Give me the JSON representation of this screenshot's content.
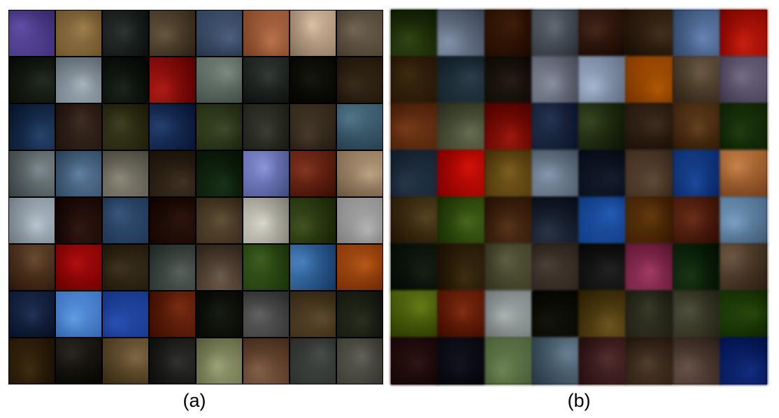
{
  "panels": [
    {
      "id": "a",
      "caption": "(a)",
      "tiles": [
        "#8f7fbf",
        "#b8a37c",
        "#58605c",
        "#8c7f6a",
        "#7c8da3",
        "#c99a7a",
        "#d9c9b8",
        "#9c9283",
        "#4a5446",
        "#b8c0c6",
        "#3f4a3e",
        "#b83b34",
        "#9ea9a2",
        "#5d6460",
        "#3a3d2e",
        "#6b5c44",
        "#4b6a8a",
        "#6e5b50",
        "#6d6d4a",
        "#4a6890",
        "#6f7a55",
        "#6b6c60",
        "#7a6d5c",
        "#7e9aa8",
        "#9ba4a6",
        "#8aa2b8",
        "#a8a69c",
        "#6b5c4a",
        "#3f5d3c",
        "#a7aed8",
        "#a05f45",
        "#c7b7a2",
        "#c4ccd2",
        "#5e3d34",
        "#6a86a3",
        "#5b3a2a",
        "#8c7e66",
        "#d7d6cf",
        "#6a7b45",
        "#c8c8c8",
        "#8c7258",
        "#c22c2c",
        "#6f6449",
        "#7e8782",
        "#8e8072",
        "#6b8a4a",
        "#6d9bc2",
        "#c6843e",
        "#4a5f80",
        "#8cb8e8",
        "#5b84c9",
        "#9a5730",
        "#3e4636",
        "#8a8a8a",
        "#8a7a5d",
        "#585d4a",
        "#6d5a36",
        "#4f4a42",
        "#9c8b6b",
        "#5a5a58",
        "#b4b89a",
        "#a08670",
        "#7a7e7a",
        "#8c8c84"
      ]
    },
    {
      "id": "b",
      "caption": "(b)",
      "tiles": [
        "#5b6e3c",
        "#9ea6b3",
        "#6b4a2e",
        "#8a8f96",
        "#6b4f3f",
        "#6c5a44",
        "#8fa3bd",
        "#c44b3a",
        "#6d5a3a",
        "#5c6e78",
        "#4f463c",
        "#a7aab3",
        "#b9c2cf",
        "#c08a3a",
        "#8d8070",
        "#9a94a6",
        "#9a6e4c",
        "#8a8f7a",
        "#a53d2e",
        "#52607a",
        "#5c6a48",
        "#6a5a4a",
        "#8a6f4f",
        "#4f6b3a",
        "#5a6a7a",
        "#c83a2e",
        "#9e8a55",
        "#a6b0bb",
        "#3e4a5c",
        "#8b7a6a",
        "#4f7ab0",
        "#c7a07a",
        "#7a6a4a",
        "#728a4a",
        "#7c6044",
        "#4f5a6a",
        "#5a8ac0",
        "#8a6a3a",
        "#8a5a44",
        "#9fb5c8",
        "#3a4a3a",
        "#6a5a3a",
        "#8a8a74",
        "#7a7068",
        "#4a4a4a",
        "#b06a8a",
        "#3e5c3a",
        "#8a7a6a",
        "#8a9a4a",
        "#9a5a3a",
        "#c0c4c4",
        "#3a3a2e",
        "#8a7a4a",
        "#6a6a5a",
        "#7a7a6a",
        "#5a7a3a",
        "#5a3a3a",
        "#3a3a4a",
        "#9aaa8a",
        "#8a9aa4",
        "#7a5a5a",
        "#7a6a5a",
        "#8a7a72",
        "#3a5a9a"
      ]
    }
  ]
}
